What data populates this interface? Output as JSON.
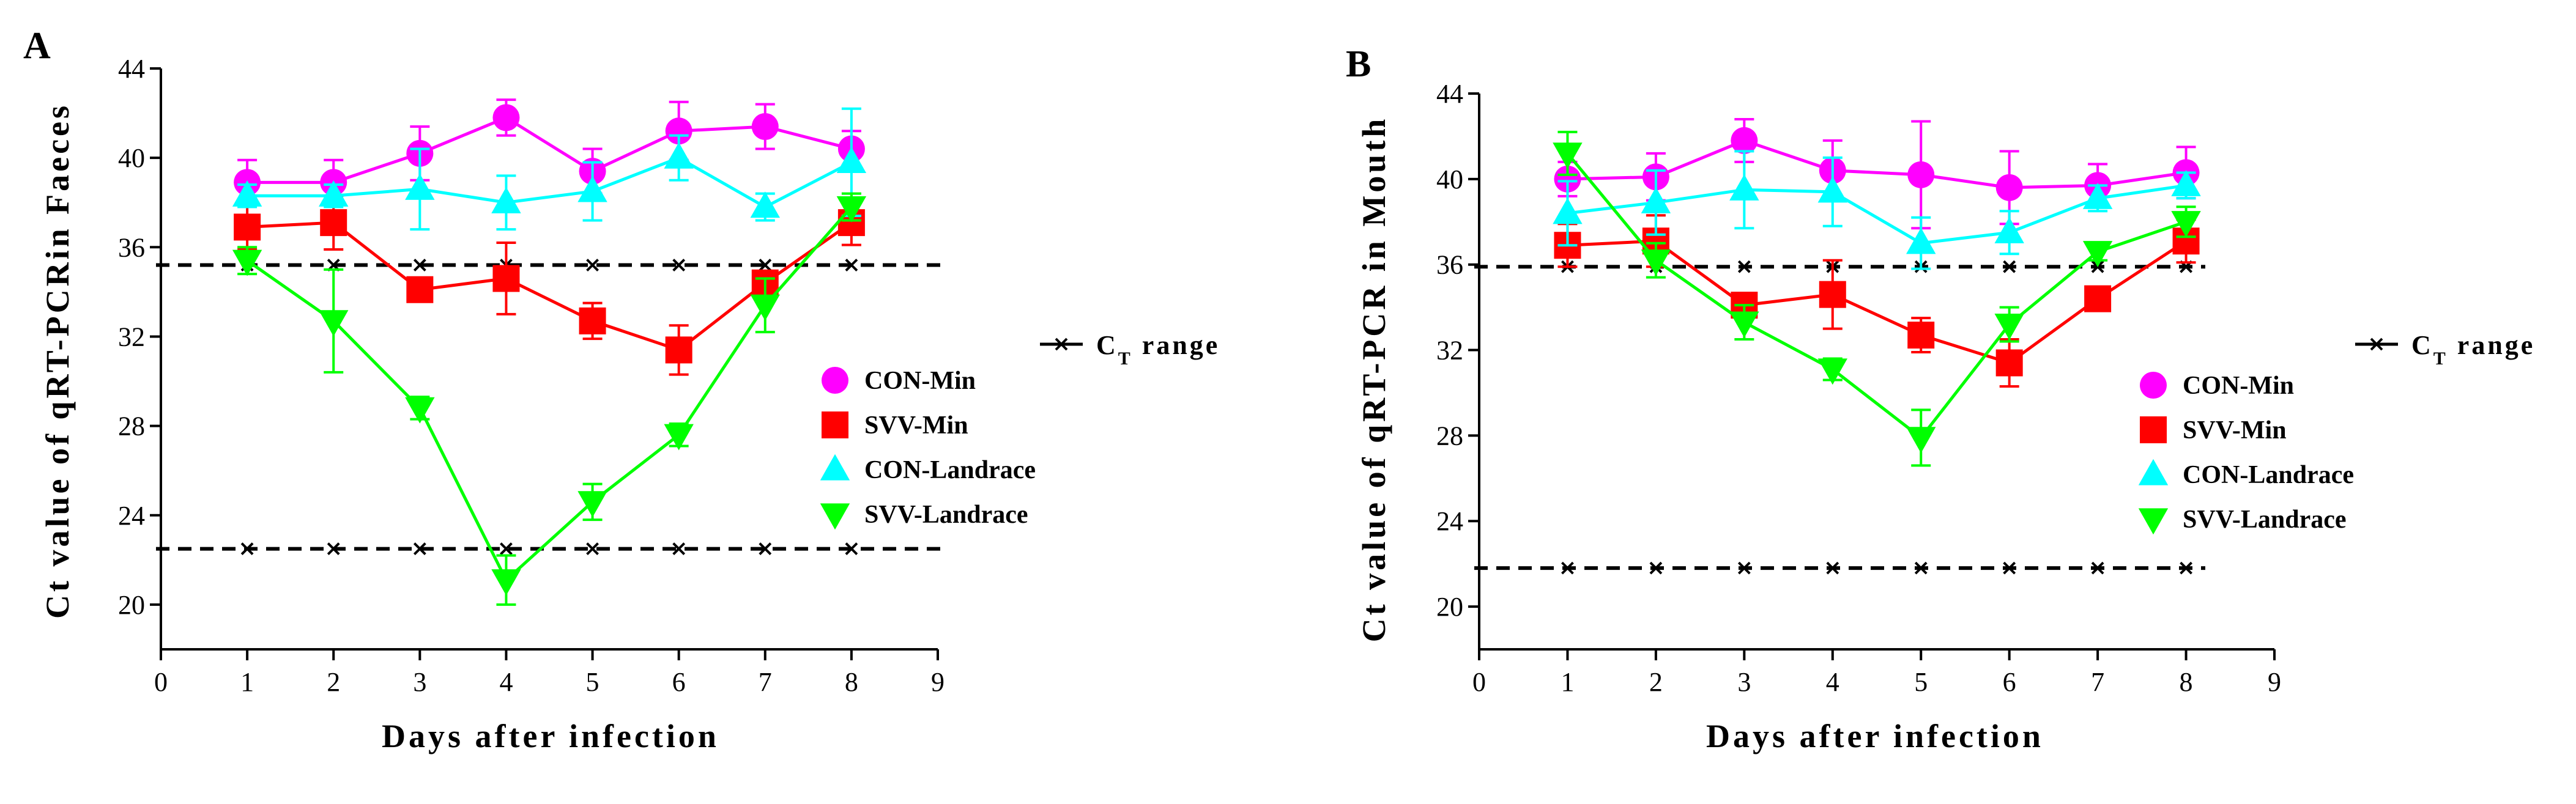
{
  "chart_data": [
    {
      "panel": "A",
      "type": "line",
      "ylabel": "Ct value of qRT-PCRin Faeces",
      "xlabel": "Days after infection",
      "xlim": [
        0,
        9
      ],
      "ylim": [
        18,
        44
      ],
      "xticks": [
        "0",
        "1",
        "2",
        "3",
        "4",
        "5",
        "6",
        "7",
        "8",
        "9"
      ],
      "yticks": [
        "20",
        "24",
        "28",
        "32",
        "36",
        "40",
        "44"
      ],
      "range_label_main": "C",
      "range_label_sub": "T",
      "range_label_rest": " range",
      "ct_range": {
        "upper": 35.2,
        "lower": 22.5,
        "x": [
          1,
          2,
          3,
          4,
          5,
          6,
          7,
          8
        ]
      },
      "series": [
        {
          "name": "CON-Min",
          "color": "#ff00ff",
          "marker": "circle",
          "x": [
            1,
            2,
            3,
            4,
            5,
            6,
            7,
            8
          ],
          "y": [
            38.9,
            38.9,
            40.2,
            41.8,
            39.4,
            41.2,
            41.4,
            40.4
          ],
          "err": [
            1.0,
            1.0,
            1.2,
            0.8,
            1.0,
            1.3,
            1.0,
            0.8
          ]
        },
        {
          "name": "SVV-Min",
          "color": "#ff0000",
          "marker": "square",
          "x": [
            1,
            2,
            3,
            4,
            5,
            6,
            7,
            8
          ],
          "y": [
            36.9,
            37.1,
            34.1,
            34.6,
            32.7,
            31.4,
            34.4,
            37.1
          ],
          "err": [
            1.0,
            1.2,
            0.3,
            1.6,
            0.8,
            1.1,
            0.5,
            1.0
          ]
        },
        {
          "name": "CON-Landrace",
          "color": "#00ffff",
          "marker": "triangle-up",
          "x": [
            1,
            2,
            3,
            4,
            5,
            6,
            7,
            8
          ],
          "y": [
            38.3,
            38.3,
            38.6,
            38.0,
            38.5,
            40.0,
            37.8,
            39.8
          ],
          "err": [
            0.5,
            0.5,
            1.8,
            1.2,
            1.3,
            1.0,
            0.6,
            2.4
          ]
        },
        {
          "name": "SVV-Landrace",
          "color": "#00ff00",
          "marker": "triangle-down",
          "x": [
            1,
            2,
            3,
            4,
            5,
            6,
            7,
            8
          ],
          "y": [
            35.4,
            32.7,
            28.8,
            21.1,
            24.6,
            27.6,
            33.4,
            37.8
          ],
          "err": [
            0.6,
            2.3,
            0.5,
            1.1,
            0.8,
            0.5,
            1.2,
            0.6
          ]
        }
      ]
    },
    {
      "panel": "B",
      "type": "line",
      "ylabel": "Ct value of qRT-PCR in Mouth",
      "xlabel": "Days after infection",
      "xlim": [
        0,
        9
      ],
      "ylim": [
        18,
        44
      ],
      "xticks": [
        "0",
        "1",
        "2",
        "3",
        "4",
        "5",
        "6",
        "7",
        "8",
        "9"
      ],
      "yticks": [
        "20",
        "24",
        "28",
        "32",
        "36",
        "40",
        "44"
      ],
      "range_label_main": "C",
      "range_label_sub": "T",
      "range_label_rest": " range",
      "ct_range": {
        "upper": 35.9,
        "lower": 21.8,
        "x": [
          1,
          2,
          3,
          4,
          5,
          6,
          7,
          8
        ]
      },
      "series": [
        {
          "name": "CON-Min",
          "color": "#ff00ff",
          "marker": "circle",
          "x": [
            1,
            2,
            3,
            4,
            5,
            6,
            7,
            8
          ],
          "y": [
            40.0,
            40.1,
            41.8,
            40.4,
            40.2,
            39.6,
            39.7,
            40.3
          ],
          "err": [
            0.8,
            1.1,
            1.0,
            1.4,
            2.5,
            1.7,
            1.0,
            1.2
          ]
        },
        {
          "name": "SVV-Min",
          "color": "#ff0000",
          "marker": "square",
          "x": [
            1,
            2,
            3,
            4,
            5,
            6,
            7,
            8
          ],
          "y": [
            36.9,
            37.1,
            34.1,
            34.6,
            32.7,
            31.4,
            34.4,
            37.1
          ],
          "err": [
            1.0,
            1.2,
            0.3,
            1.6,
            0.8,
            1.1,
            0.5,
            1.0
          ]
        },
        {
          "name": "CON-Landrace",
          "color": "#00ffff",
          "marker": "triangle-up",
          "x": [
            1,
            2,
            3,
            4,
            5,
            6,
            7,
            8
          ],
          "y": [
            38.4,
            38.9,
            39.5,
            39.4,
            37.0,
            37.5,
            39.1,
            39.7
          ],
          "err": [
            1.5,
            1.5,
            1.8,
            1.6,
            1.2,
            1.0,
            0.6,
            0.6
          ]
        },
        {
          "name": "SVV-Landrace",
          "color": "#00ff00",
          "marker": "triangle-down",
          "x": [
            1,
            2,
            3,
            4,
            5,
            6,
            7,
            8
          ],
          "y": [
            41.2,
            36.2,
            33.3,
            31.1,
            27.9,
            33.2,
            36.6,
            38.0
          ],
          "err": [
            1.0,
            0.8,
            0.8,
            0.5,
            1.3,
            0.8,
            0.4,
            0.7
          ]
        }
      ]
    }
  ]
}
